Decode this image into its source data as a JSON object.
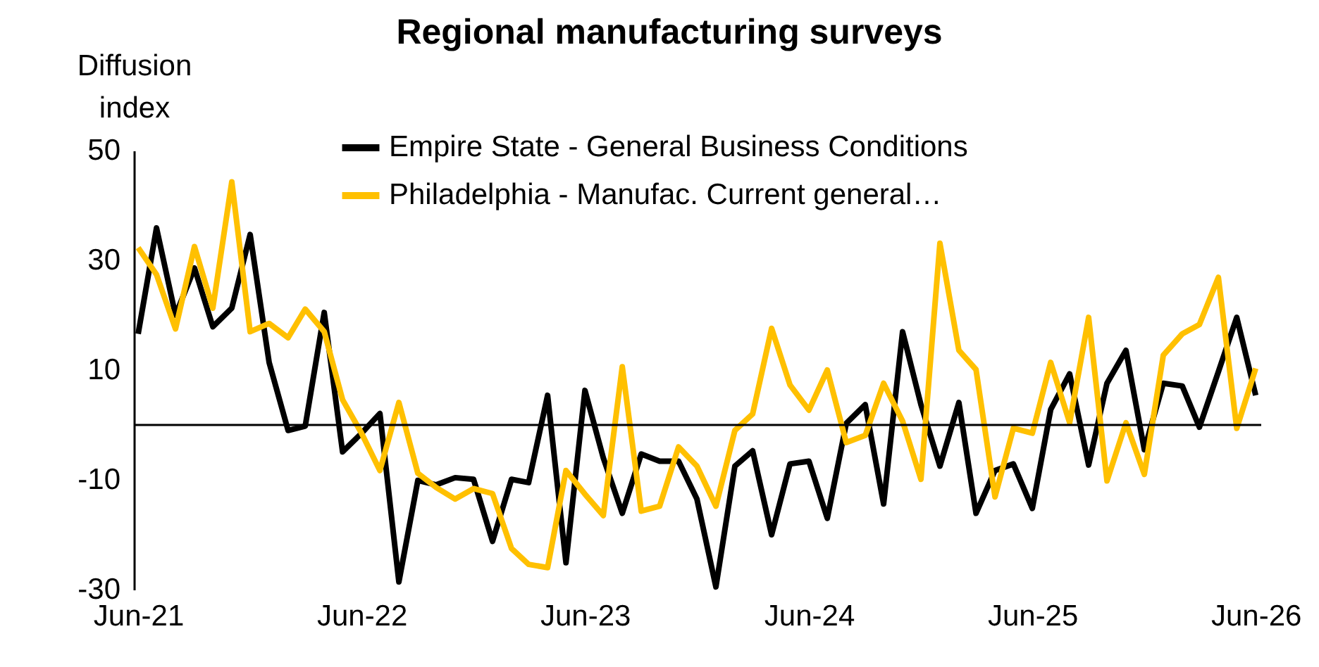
{
  "chart_data": {
    "type": "line",
    "title": "Regional manufacturing surveys",
    "ylabel": "Diffusion index",
    "x": [
      "2021-06",
      "2021-07",
      "2021-08",
      "2021-09",
      "2021-10",
      "2021-11",
      "2021-12",
      "2022-01",
      "2022-02",
      "2022-03",
      "2022-04",
      "2022-05",
      "2022-06",
      "2022-07",
      "2022-08",
      "2022-09",
      "2022-10",
      "2022-11",
      "2022-12",
      "2023-01",
      "2023-02",
      "2023-03",
      "2023-04",
      "2023-05",
      "2023-06",
      "2023-07",
      "2023-08",
      "2023-09",
      "2023-10",
      "2023-11",
      "2023-12",
      "2024-01",
      "2024-02",
      "2024-03",
      "2024-04",
      "2024-05",
      "2024-06",
      "2024-07",
      "2024-08",
      "2024-09",
      "2024-10",
      "2024-11",
      "2024-12",
      "2025-01",
      "2025-02",
      "2025-03",
      "2025-04",
      "2025-05",
      "2025-06",
      "2025-07",
      "2025-08",
      "2025-09",
      "2025-10",
      "2025-11",
      "2025-12",
      "2026-01",
      "2026-02",
      "2026-03",
      "2026-04",
      "2026-05",
      "2026-06"
    ],
    "series": [
      {
        "name": "Empire State - General Business Conditions",
        "color": "#000000",
        "values": [
          16.6,
          35.9,
          20.0,
          28.6,
          17.9,
          21.3,
          34.7,
          11.4,
          -1.0,
          -0.2,
          20.5,
          -4.9,
          -1.5,
          2.1,
          -28.6,
          -10.1,
          -10.9,
          -9.6,
          -9.9,
          -21.2,
          -9.9,
          -10.5,
          5.4,
          -25.1,
          6.3,
          -6,
          -16.1,
          -5.3,
          -6.6,
          -6.6,
          -13.5,
          -29.5,
          -7.5,
          -4.7,
          -20.0,
          -7.1,
          -6.6,
          -17.0,
          0.3,
          3.7,
          -14.4,
          17.0,
          3.7,
          -7.5,
          4.1,
          -16.1,
          -8.3,
          -7.1,
          -15.2,
          2.8,
          9.3,
          -7.3,
          7.6,
          13.6,
          -4.5,
          7.6,
          7.1,
          -0.4,
          9.7,
          19.6,
          5.4
        ]
      },
      {
        "name": "Philadelphia - Manufac. Current general…",
        "color": "#ffc000",
        "values": [
          32.3,
          27.4,
          17.5,
          32.5,
          21.3,
          44.3,
          17.0,
          18.5,
          15.9,
          21.1,
          17.0,
          4.6,
          -1.5,
          -8.3,
          4.1,
          -8.8,
          -11.4,
          -13.5,
          -11.6,
          -12.5,
          -22.5,
          -25.4,
          -26.0,
          -8.3,
          -12.6,
          -16.5,
          10.6,
          -15.7,
          -14.8,
          -4.0,
          -7.5,
          -14.8,
          -1.0,
          2.0,
          17.6,
          7.3,
          2.7,
          10.0,
          -3.2,
          -1.9,
          7.6,
          0.7,
          -9.9,
          33.1,
          13.6,
          10.1,
          -13.1,
          -0.6,
          -1.5,
          11.4,
          0.4,
          19.6,
          -10.2,
          0.4,
          -9.0,
          12.7,
          16.6,
          18.3,
          26.9,
          -0.6,
          10.3
        ]
      }
    ],
    "xlim": [
      "2021-05-25",
      "2026-06-10"
    ],
    "xticks": [
      {
        "value": "2021-06",
        "label": "Jun-21"
      },
      {
        "value": "2022-06",
        "label": "Jun-22"
      },
      {
        "value": "2023-06",
        "label": "Jun-23"
      },
      {
        "value": "2024-06",
        "label": "Jun-24"
      },
      {
        "value": "2025-06",
        "label": "Jun-25"
      },
      {
        "value": "2026-06",
        "label": "Jun-26"
      }
    ],
    "ylim": [
      -30,
      50
    ],
    "yticks": [
      -30,
      -10,
      10,
      30,
      50
    ],
    "ref_lines": [
      {
        "axis": "y",
        "value": 0,
        "color": "#000000"
      }
    ],
    "legend": "top",
    "grid": false,
    "line_style": "solid",
    "marker": "none"
  }
}
